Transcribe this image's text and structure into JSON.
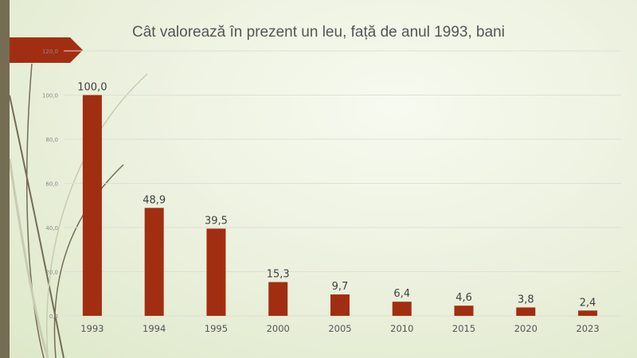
{
  "chart_data": {
    "type": "bar",
    "title": "Cât valorează în prezent un leu, față de anul 1993, bani",
    "categories": [
      "1993",
      "1994",
      "1995",
      "2000",
      "2005",
      "2010",
      "2015",
      "2020",
      "2023"
    ],
    "values": [
      100.0,
      48.9,
      39.5,
      15.3,
      9.7,
      6.4,
      4.6,
      3.8,
      2.4
    ],
    "data_labels": [
      "100,0",
      "48,9",
      "39,5",
      "15,3",
      "9,7",
      "6,4",
      "4,6",
      "3,8",
      "2,4"
    ],
    "yticks": [
      "0,0",
      "20,0",
      "40,0",
      "60,0",
      "80,0",
      "100,0",
      "120,0"
    ],
    "ylim": [
      0,
      120
    ],
    "grid": true,
    "xlabel": "",
    "ylabel": "",
    "bar_color": "#a22e12"
  }
}
